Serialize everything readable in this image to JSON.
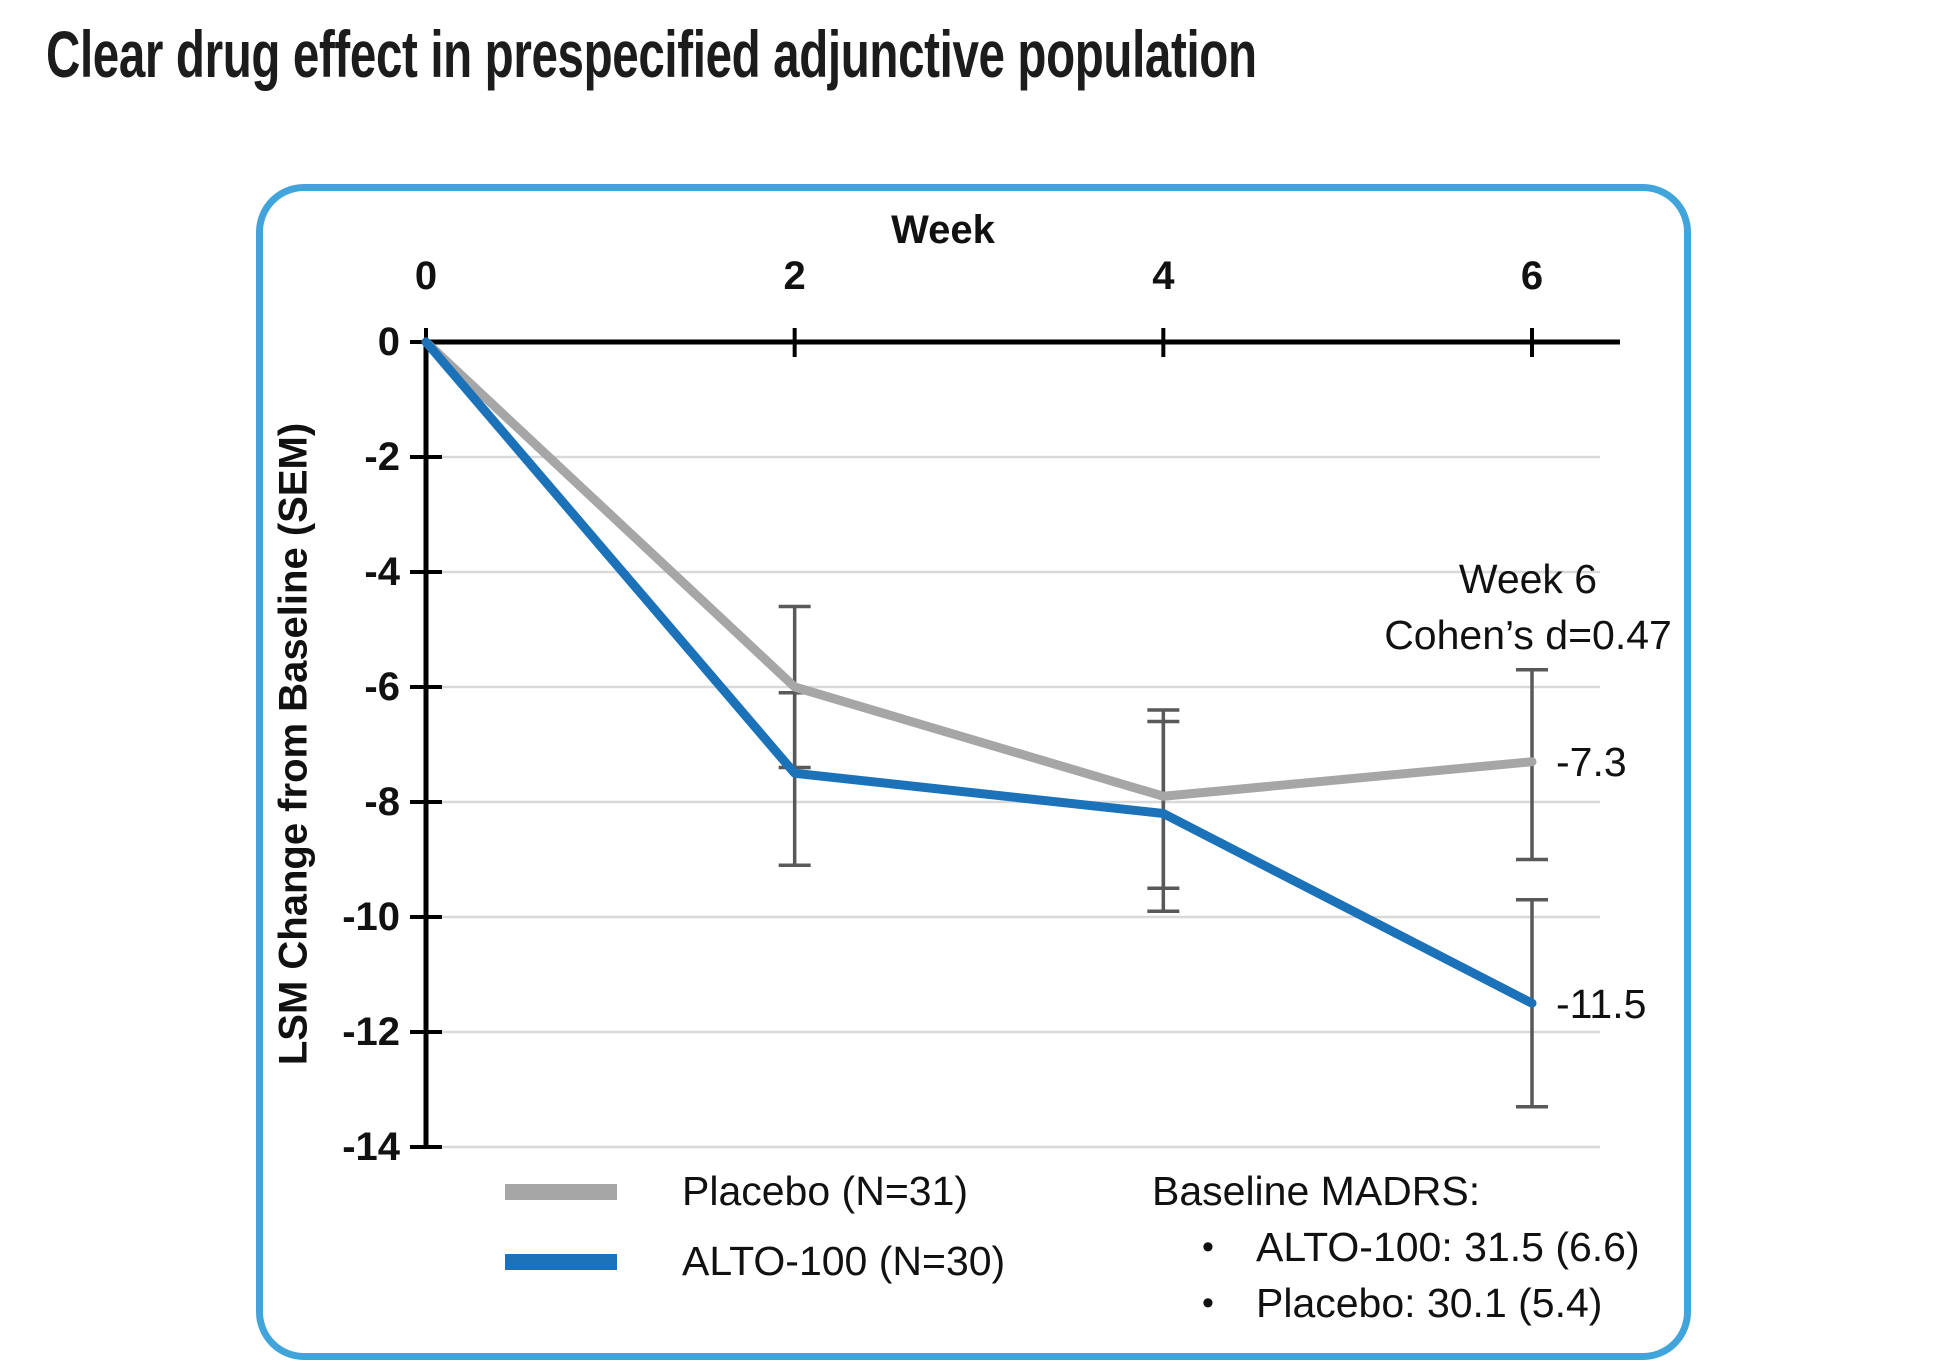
{
  "page_title": "Clear drug effect in prespecified adjunctive population",
  "colors": {
    "panel_border": "#41a5dc",
    "placebo_line": "#a6a6a6",
    "alto_line": "#1b72b8",
    "error_bar": "#595959",
    "gridline": "#d9d9d9",
    "axis": "#000000",
    "text": "#111111"
  },
  "chart_data": {
    "type": "line",
    "title": "Clear drug effect in prespecified adjunctive population",
    "xlabel": "Week",
    "ylabel": "LSM Change from Baseline (SEM)",
    "x": [
      0,
      2,
      4,
      6
    ],
    "x_tick_labels": [
      "0",
      "2",
      "4",
      "6"
    ],
    "y_tick_values": [
      0,
      -2,
      -4,
      -6,
      -8,
      -10,
      -12,
      -14
    ],
    "ylim": [
      -14,
      0
    ],
    "grid": "horizontal",
    "legend_position": "bottom-left",
    "series": [
      {
        "name": "Placebo (N=31)",
        "color": "#a6a6a6",
        "values": [
          0,
          -6.0,
          -7.9,
          -7.3
        ],
        "err_hi": [
          null,
          -4.6,
          -6.4,
          -5.7
        ],
        "err_lo": [
          null,
          -7.4,
          -9.5,
          -9.0
        ],
        "end_label": "-7.3"
      },
      {
        "name": "ALTO-100 (N=30)",
        "color": "#1b72b8",
        "values": [
          0,
          -7.5,
          -8.2,
          -11.5
        ],
        "err_hi": [
          null,
          -6.1,
          -6.6,
          -9.7
        ],
        "err_lo": [
          null,
          -9.1,
          -9.9,
          -13.3
        ],
        "end_label": "-11.5"
      }
    ],
    "annotation": {
      "line1": "Week 6",
      "line2": "Cohen’s d=0.47"
    },
    "notes": {
      "heading": "Baseline MADRS:",
      "bullet_glyph": "•",
      "bullets": [
        "ALTO-100: 31.5 (6.6)",
        "Placebo: 30.1 (5.4)"
      ]
    }
  }
}
